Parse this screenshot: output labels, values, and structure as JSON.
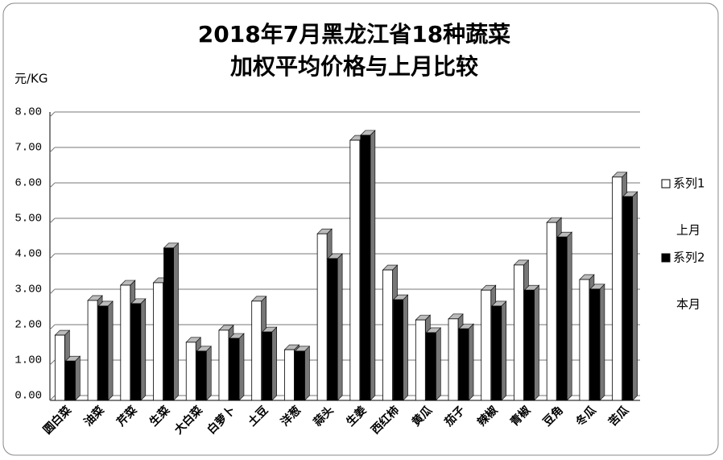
{
  "chart_data": {
    "type": "bar",
    "title": [
      "2018年7月黑龙江省18种蔬菜",
      "加权平均价格与上月比较"
    ],
    "y_axis_label": "元/KG",
    "categories": [
      "圆白菜",
      "油菜",
      "芹菜",
      "生菜",
      "大白菜",
      "白萝卜",
      "土豆",
      "洋葱",
      "蒜头",
      "生姜",
      "西红柿",
      "黄瓜",
      "茄子",
      "辣椒",
      "青椒",
      "豆角",
      "冬瓜",
      "苦瓜"
    ],
    "series": [
      {
        "name": "系列1",
        "color": "#ffffff",
        "values": [
          1.84,
          2.82,
          3.25,
          3.32,
          1.64,
          1.98,
          2.8,
          1.43,
          4.7,
          7.34,
          3.68,
          2.27,
          2.3,
          3.11,
          3.82,
          5.02,
          3.41,
          6.3
        ]
      },
      {
        "name": "系列2",
        "color": "#000000",
        "values": [
          1.11,
          2.66,
          2.73,
          4.3,
          1.39,
          1.75,
          1.93,
          1.39,
          4.0,
          7.48,
          2.84,
          1.91,
          2.02,
          2.66,
          3.11,
          4.61,
          3.14,
          5.75
        ]
      }
    ],
    "legend_notes": [
      "上月",
      "本月"
    ],
    "ylim": [
      0,
      8
    ],
    "yticks": [
      {
        "value": 0,
        "label": "0.00"
      },
      {
        "value": 1,
        "label": "1.00"
      },
      {
        "value": 2,
        "label": "2.00"
      },
      {
        "value": 3,
        "label": "3.00"
      },
      {
        "value": 4,
        "label": "4.00"
      },
      {
        "value": 5,
        "label": "5.00"
      },
      {
        "value": 6,
        "label": "6.00"
      },
      {
        "value": 7,
        "label": "7.00"
      },
      {
        "value": 8,
        "label": "8.00"
      }
    ],
    "grid": true
  }
}
